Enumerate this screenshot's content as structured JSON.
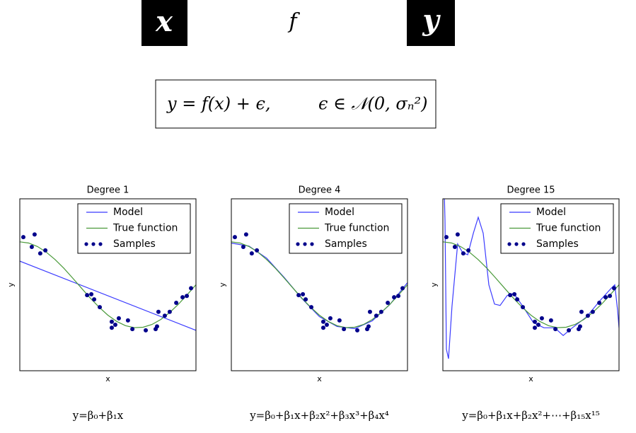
{
  "diagram": {
    "input": "x",
    "function": "f",
    "output": "y",
    "equation": "y = f(x) + ϵ,",
    "noise": "ϵ ∈ 𝒩(0, σₙ²)"
  },
  "chart_data": [
    {
      "type": "line",
      "title": "Degree 1",
      "xlabel": "x",
      "ylabel": "y",
      "formula": "y=β₀+β₁x",
      "xlim": [
        0,
        1
      ],
      "ylim": [
        -2,
        2
      ],
      "legend": "upper right",
      "series": [
        {
          "name": "Model",
          "mode": "line",
          "color": "#3b3bff",
          "x": [
            0,
            1
          ],
          "values": [
            0.55,
            -1.06
          ]
        },
        {
          "name": "True function",
          "mode": "line",
          "color": "#4a9a3a",
          "x": [
            0,
            0.05,
            0.1,
            0.15,
            0.2,
            0.25,
            0.3,
            0.35,
            0.4,
            0.45,
            0.5,
            0.55,
            0.6,
            0.65,
            0.7,
            0.75,
            0.8,
            0.85,
            0.9,
            0.95,
            1.0
          ],
          "values": [
            1,
            0.972,
            0.891,
            0.76,
            0.588,
            0.383,
            0.156,
            -0.078,
            -0.309,
            -0.522,
            -0.707,
            -0.853,
            -0.951,
            -0.997,
            -0.988,
            -0.924,
            -0.809,
            -0.649,
            -0.454,
            -0.233,
            0
          ]
        },
        {
          "name": "Samples",
          "mode": "markers",
          "color": "#00008b",
          "x": [
            0.02,
            0.084,
            0.068,
            0.116,
            0.145,
            0.382,
            0.406,
            0.422,
            0.454,
            0.522,
            0.522,
            0.542,
            0.562,
            0.614,
            0.639,
            0.715,
            0.771,
            0.779,
            0.787,
            0.823,
            0.851,
            0.888,
            0.924,
            0.948,
            0.972
          ],
          "values": [
            1.11,
            1.17,
            0.88,
            0.73,
            0.8,
            -0.24,
            -0.22,
            -0.34,
            -0.52,
            -0.86,
            -1.0,
            -0.93,
            -0.78,
            -0.83,
            -1.03,
            -1.06,
            -1.03,
            -0.97,
            -0.63,
            -0.72,
            -0.63,
            -0.42,
            -0.29,
            -0.26,
            -0.08
          ]
        }
      ]
    },
    {
      "type": "line",
      "title": "Degree 4",
      "xlabel": "x",
      "ylabel": "y",
      "formula": "y=β₀+β₁x+β₂x²+β₃x³+β₄x⁴",
      "xlim": [
        0,
        1
      ],
      "ylim": [
        -2,
        2
      ],
      "legend": "upper right",
      "series": [
        {
          "name": "Model",
          "mode": "line",
          "color": "#3b3bff",
          "x": [
            0,
            0.1,
            0.2,
            0.3,
            0.4,
            0.5,
            0.6,
            0.7,
            0.8,
            0.9,
            1.0
          ],
          "values": [
            0.97,
            0.9,
            0.62,
            0.17,
            -0.32,
            -0.74,
            -0.97,
            -1.02,
            -0.84,
            -0.46,
            0.05
          ]
        },
        {
          "name": "True function",
          "mode": "line",
          "color": "#4a9a3a",
          "x": [
            0,
            0.05,
            0.1,
            0.15,
            0.2,
            0.25,
            0.3,
            0.35,
            0.4,
            0.45,
            0.5,
            0.55,
            0.6,
            0.65,
            0.7,
            0.75,
            0.8,
            0.85,
            0.9,
            0.95,
            1.0
          ],
          "values": [
            1,
            0.972,
            0.891,
            0.76,
            0.588,
            0.383,
            0.156,
            -0.078,
            -0.309,
            -0.522,
            -0.707,
            -0.853,
            -0.951,
            -0.997,
            -0.988,
            -0.924,
            -0.809,
            -0.649,
            -0.454,
            -0.233,
            0
          ]
        },
        {
          "name": "Samples",
          "mode": "markers",
          "color": "#00008b",
          "x": [
            0.02,
            0.084,
            0.068,
            0.116,
            0.145,
            0.382,
            0.406,
            0.422,
            0.454,
            0.522,
            0.522,
            0.542,
            0.562,
            0.614,
            0.639,
            0.715,
            0.771,
            0.779,
            0.787,
            0.823,
            0.851,
            0.888,
            0.924,
            0.948,
            0.972
          ],
          "values": [
            1.11,
            1.17,
            0.88,
            0.73,
            0.8,
            -0.24,
            -0.22,
            -0.34,
            -0.52,
            -0.86,
            -1.0,
            -0.93,
            -0.78,
            -0.83,
            -1.03,
            -1.06,
            -1.03,
            -0.97,
            -0.63,
            -0.72,
            -0.63,
            -0.42,
            -0.29,
            -0.26,
            -0.08
          ]
        }
      ]
    },
    {
      "type": "line",
      "title": "Degree 15",
      "xlabel": "x",
      "ylabel": "y",
      "formula": "y=β₀+β₁x+β₂x²+⋯+β₁₅x¹⁵",
      "xlim": [
        0,
        1
      ],
      "ylim": [
        -2,
        2
      ],
      "legend": "upper right",
      "series": [
        {
          "name": "Model",
          "mode": "line",
          "color": "#3b3bff",
          "x": [
            0,
            0.012,
            0.02,
            0.032,
            0.052,
            0.084,
            0.112,
            0.141,
            0.173,
            0.201,
            0.229,
            0.261,
            0.293,
            0.325,
            0.365,
            0.402,
            0.454,
            0.514,
            0.574,
            0.635,
            0.683,
            0.735,
            0.815,
            0.896,
            0.956,
            0.976,
            0.992,
            1.0
          ],
          "values": [
            3.5,
            1.5,
            -1.5,
            -1.72,
            -0.5,
            0.95,
            0.75,
            0.7,
            1.2,
            1.57,
            1.2,
            0.0,
            -0.45,
            -0.48,
            -0.25,
            -0.2,
            -0.5,
            -0.88,
            -1.0,
            -1.0,
            -1.18,
            -1.0,
            -0.75,
            -0.35,
            -0.08,
            0.0,
            -0.6,
            -1.0
          ]
        },
        {
          "name": "True function",
          "mode": "line",
          "color": "#4a9a3a",
          "x": [
            0,
            0.05,
            0.1,
            0.15,
            0.2,
            0.25,
            0.3,
            0.35,
            0.4,
            0.45,
            0.5,
            0.55,
            0.6,
            0.65,
            0.7,
            0.75,
            0.8,
            0.85,
            0.9,
            0.95,
            1.0
          ],
          "values": [
            1,
            0.972,
            0.891,
            0.76,
            0.588,
            0.383,
            0.156,
            -0.078,
            -0.309,
            -0.522,
            -0.707,
            -0.853,
            -0.951,
            -0.997,
            -0.988,
            -0.924,
            -0.809,
            -0.649,
            -0.454,
            -0.233,
            0
          ]
        },
        {
          "name": "Samples",
          "mode": "markers",
          "color": "#00008b",
          "x": [
            0.02,
            0.084,
            0.068,
            0.116,
            0.145,
            0.382,
            0.406,
            0.422,
            0.454,
            0.522,
            0.522,
            0.542,
            0.562,
            0.614,
            0.639,
            0.715,
            0.771,
            0.779,
            0.787,
            0.823,
            0.851,
            0.888,
            0.924,
            0.948,
            0.972
          ],
          "values": [
            1.11,
            1.17,
            0.88,
            0.73,
            0.8,
            -0.24,
            -0.22,
            -0.34,
            -0.52,
            -0.86,
            -1.0,
            -0.93,
            -0.78,
            -0.83,
            -1.03,
            -1.06,
            -1.03,
            -0.97,
            -0.63,
            -0.72,
            -0.63,
            -0.42,
            -0.29,
            -0.26,
            -0.08
          ]
        }
      ]
    }
  ]
}
